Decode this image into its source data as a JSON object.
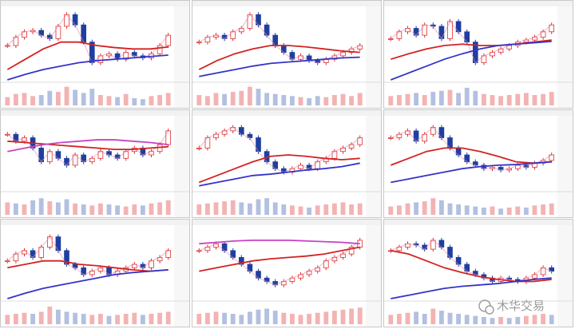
{
  "watermark": "木华交易",
  "ylim": [
    0,
    100
  ],
  "volume_lim": [
    0,
    100
  ],
  "panels": [
    {
      "close": [
        50,
        62,
        70,
        72,
        65,
        60,
        78,
        95,
        80,
        55,
        25,
        35,
        38,
        30,
        40,
        35,
        32,
        38,
        50,
        65
      ],
      "volume": [
        40,
        55,
        60,
        45,
        50,
        70,
        65,
        90,
        75,
        60,
        80,
        50,
        45,
        40,
        55,
        35,
        30,
        45,
        50,
        60
      ],
      "lines": [
        {
          "color": "#d42222",
          "values": [
            15,
            30,
            45,
            55,
            55,
            50,
            47,
            45,
            45,
            48
          ]
        },
        {
          "color": "#3434c8",
          "values": [
            0,
            8,
            15,
            20,
            25,
            28,
            30,
            32,
            34,
            36
          ]
        }
      ]
    },
    {
      "close": [
        55,
        62,
        65,
        60,
        70,
        75,
        95,
        80,
        65,
        50,
        40,
        30,
        35,
        28,
        25,
        30,
        35,
        40,
        45,
        50
      ],
      "volume": [
        50,
        45,
        60,
        55,
        65,
        70,
        90,
        80,
        60,
        55,
        50,
        45,
        40,
        35,
        45,
        40,
        50,
        55,
        45,
        60
      ],
      "lines": [
        {
          "color": "#d42222",
          "values": [
            15,
            28,
            38,
            45,
            50,
            50,
            48,
            45,
            42,
            40
          ]
        },
        {
          "color": "#3434c8",
          "values": [
            5,
            10,
            15,
            20,
            24,
            26,
            28,
            30,
            32,
            33
          ]
        }
      ]
    },
    {
      "close": [
        60,
        70,
        75,
        65,
        80,
        78,
        60,
        85,
        70,
        55,
        25,
        35,
        40,
        45,
        50,
        55,
        58,
        62,
        70,
        80
      ],
      "volume": [
        45,
        50,
        55,
        60,
        50,
        65,
        70,
        75,
        60,
        85,
        70,
        55,
        50,
        45,
        50,
        55,
        60,
        50,
        55,
        65
      ],
      "lines": [
        {
          "color": "#d42222",
          "values": [
            30,
            38,
            45,
            50,
            52,
            50,
            50,
            52,
            55,
            58
          ]
        },
        {
          "color": "#3434c8",
          "values": [
            0,
            10,
            20,
            30,
            38,
            45,
            50,
            52,
            54,
            56
          ]
        }
      ]
    },
    {
      "close": [
        80,
        70,
        75,
        60,
        40,
        55,
        45,
        35,
        50,
        40,
        45,
        55,
        50,
        45,
        55,
        60,
        50,
        55,
        65,
        85
      ],
      "volume": [
        60,
        55,
        50,
        70,
        80,
        65,
        60,
        75,
        55,
        50,
        45,
        55,
        50,
        45,
        40,
        50,
        45,
        55,
        60,
        70
      ],
      "lines": [
        {
          "color": "#d42222",
          "values": [
            70,
            68,
            66,
            64,
            62,
            60,
            58,
            58,
            60,
            62
          ]
        },
        {
          "color": "#c444c4",
          "values": [
            55,
            60,
            65,
            68,
            70,
            72,
            72,
            70,
            68,
            65
          ]
        }
      ]
    },
    {
      "close": [
        60,
        75,
        80,
        85,
        90,
        80,
        75,
        55,
        40,
        30,
        25,
        30,
        35,
        30,
        40,
        45,
        55,
        60,
        65,
        75
      ],
      "volume": [
        50,
        55,
        60,
        65,
        70,
        60,
        55,
        75,
        80,
        60,
        50,
        45,
        40,
        35,
        45,
        50,
        55,
        60,
        50,
        55
      ],
      "lines": [
        {
          "color": "#d42222",
          "values": [
            10,
            20,
            30,
            40,
            48,
            50,
            48,
            45,
            43,
            45
          ]
        },
        {
          "color": "#3434c8",
          "values": [
            5,
            10,
            15,
            20,
            22,
            25,
            28,
            30,
            33,
            38
          ]
        }
      ]
    },
    {
      "close": [
        75,
        80,
        85,
        70,
        80,
        90,
        75,
        60,
        50,
        40,
        35,
        30,
        32,
        28,
        30,
        35,
        32,
        38,
        42,
        50
      ],
      "volume": [
        40,
        45,
        55,
        60,
        65,
        80,
        70,
        55,
        50,
        45,
        40,
        35,
        40,
        30,
        35,
        40,
        35,
        45,
        50,
        55
      ],
      "lines": [
        {
          "color": "#d42222",
          "values": [
            35,
            45,
            55,
            60,
            60,
            55,
            48,
            40,
            38,
            40
          ]
        },
        {
          "color": "#3434c8",
          "values": [
            10,
            15,
            20,
            25,
            30,
            33,
            35,
            36,
            38,
            40
          ]
        }
      ]
    },
    {
      "close": [
        55,
        65,
        70,
        60,
        75,
        90,
        70,
        50,
        45,
        35,
        40,
        45,
        35,
        40,
        45,
        50,
        45,
        55,
        60,
        70
      ],
      "volume": [
        45,
        50,
        55,
        50,
        60,
        85,
        70,
        60,
        55,
        50,
        45,
        50,
        40,
        45,
        50,
        55,
        45,
        50,
        55,
        60
      ],
      "lines": [
        {
          "color": "#d42222",
          "values": [
            45,
            50,
            55,
            55,
            50,
            48,
            45,
            42,
            40,
            42
          ]
        },
        {
          "color": "#3434c8",
          "values": [
            0,
            8,
            15,
            20,
            25,
            30,
            35,
            38,
            40,
            42
          ]
        }
      ]
    },
    {
      "close": [
        70,
        75,
        80,
        70,
        60,
        50,
        40,
        30,
        25,
        20,
        25,
        30,
        35,
        40,
        45,
        55,
        60,
        65,
        75,
        85
      ],
      "volume": [
        50,
        55,
        60,
        55,
        50,
        45,
        60,
        70,
        75,
        65,
        55,
        50,
        45,
        50,
        55,
        60,
        65,
        70,
        75,
        80
      ],
      "lines": [
        {
          "color": "#c444c4",
          "values": [
            80,
            82,
            84,
            85,
            85,
            85,
            84,
            83,
            82,
            80
          ]
        },
        {
          "color": "#d42222",
          "values": [
            40,
            45,
            50,
            55,
            58,
            60,
            62,
            65,
            70,
            75
          ]
        }
      ]
    },
    {
      "close": [
        70,
        75,
        80,
        78,
        72,
        85,
        75,
        60,
        50,
        40,
        35,
        30,
        25,
        30,
        28,
        25,
        30,
        35,
        45,
        40
      ],
      "volume": [
        45,
        50,
        55,
        60,
        50,
        75,
        65,
        55,
        50,
        45,
        40,
        35,
        30,
        35,
        30,
        35,
        40,
        45,
        50,
        45
      ],
      "lines": [
        {
          "color": "#d42222",
          "values": [
            70,
            65,
            55,
            45,
            38,
            32,
            28,
            25,
            25,
            28
          ]
        },
        {
          "color": "#3434c8",
          "values": [
            0,
            5,
            10,
            15,
            18,
            20,
            22,
            25,
            28,
            30
          ]
        }
      ]
    }
  ]
}
